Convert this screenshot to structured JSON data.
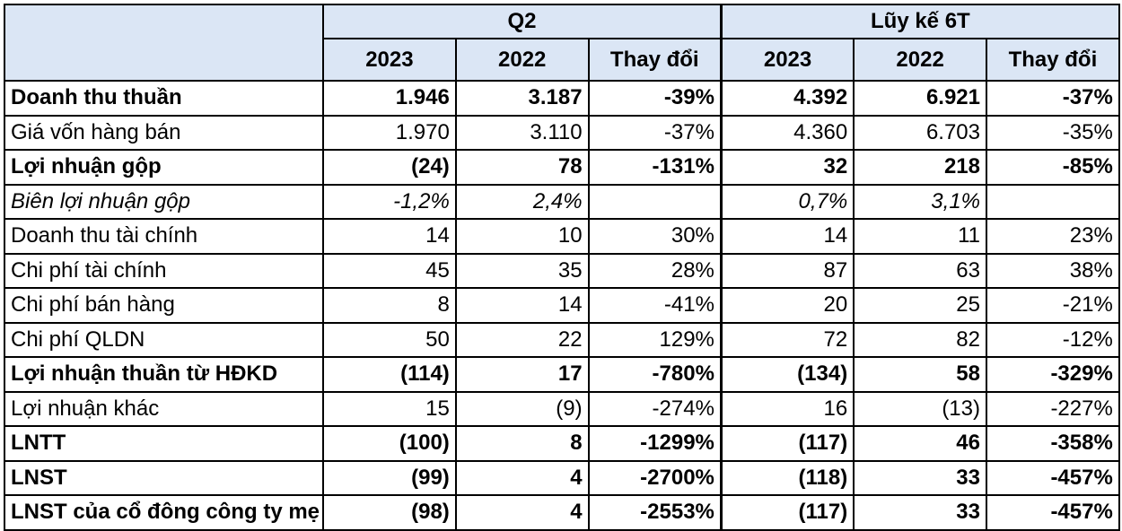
{
  "header": {
    "group_q2": "Q2",
    "group_6t": "Lũy kế 6T",
    "columns": [
      "2023",
      "2022",
      "Thay đổi",
      "2023",
      "2022",
      "Thay đổi"
    ]
  },
  "rows": [
    {
      "label": "Doanh thu thuần",
      "style": "bold",
      "values": [
        "1.946",
        "3.187",
        "-39%",
        "4.392",
        "6.921",
        "-37%"
      ]
    },
    {
      "label": "Giá vốn hàng bán",
      "style": "normal",
      "values": [
        "1.970",
        "3.110",
        "-37%",
        "4.360",
        "6.703",
        "-35%"
      ]
    },
    {
      "label": "Lợi nhuận gộp",
      "style": "bold",
      "values": [
        "(24)",
        "78",
        "-131%",
        "32",
        "218",
        "-85%"
      ]
    },
    {
      "label": "Biên lợi nhuận gộp",
      "style": "italic",
      "values": [
        "-1,2%",
        "2,4%",
        "",
        "0,7%",
        "3,1%",
        ""
      ]
    },
    {
      "label": "Doanh thu tài chính",
      "style": "normal",
      "values": [
        "14",
        "10",
        "30%",
        "14",
        "11",
        "23%"
      ]
    },
    {
      "label": "Chi phí tài chính",
      "style": "normal",
      "values": [
        "45",
        "35",
        "28%",
        "87",
        "63",
        "38%"
      ]
    },
    {
      "label": "Chi phí bán hàng",
      "style": "normal",
      "values": [
        "8",
        "14",
        "-41%",
        "20",
        "25",
        "-21%"
      ]
    },
    {
      "label": "Chi phí QLDN",
      "style": "normal",
      "values": [
        "50",
        "22",
        "129%",
        "72",
        "82",
        "-12%"
      ]
    },
    {
      "label": "Lợi nhuận thuần từ HĐKD",
      "style": "bold",
      "values": [
        "(114)",
        "17",
        "-780%",
        "(134)",
        "58",
        "-329%"
      ]
    },
    {
      "label": "Lợi nhuận khác",
      "style": "normal",
      "values": [
        "15",
        "(9)",
        "-274%",
        "16",
        "(13)",
        "-227%"
      ]
    },
    {
      "label": "LNTT",
      "style": "bold",
      "values": [
        "(100)",
        "8",
        "-1299%",
        "(117)",
        "46",
        "-358%"
      ]
    },
    {
      "label": "LNST",
      "style": "bold",
      "values": [
        "(99)",
        "4",
        "-2700%",
        "(118)",
        "33",
        "-457%"
      ]
    },
    {
      "label": "LNST của cổ đông công ty mẹ",
      "style": "bold",
      "values": [
        "(98)",
        "4",
        "-2553%",
        "(117)",
        "33",
        "-457%"
      ]
    }
  ]
}
